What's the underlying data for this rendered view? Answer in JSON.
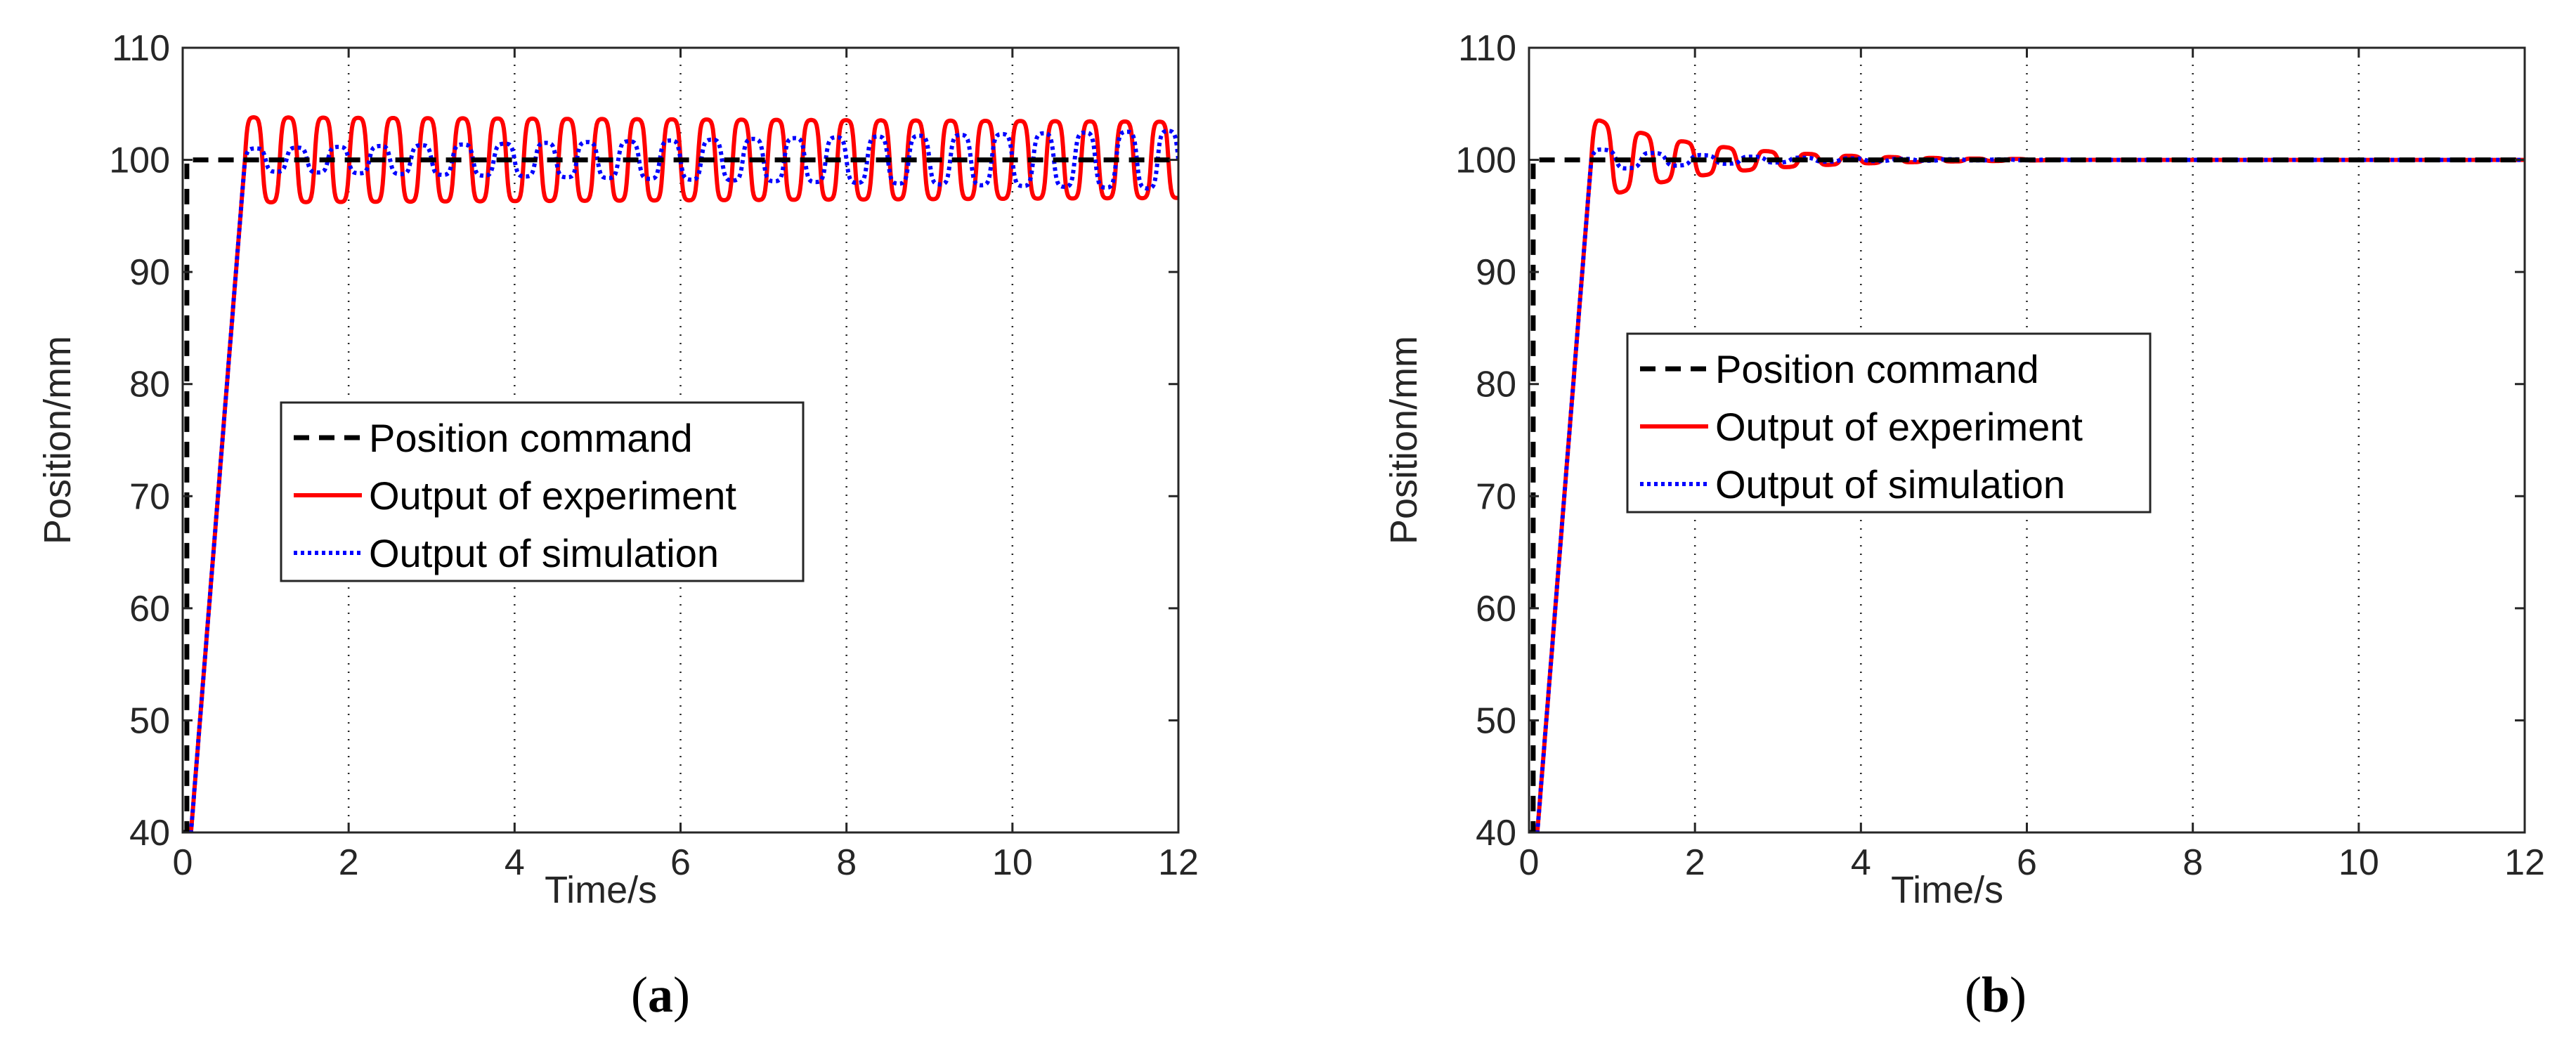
{
  "figure": {
    "legend_labels": {
      "command": "Position command",
      "experiment": "Output of experiment",
      "simulation": "Output of simulation"
    }
  },
  "chart_data": [
    {
      "type": "line",
      "panel": "a",
      "caption": {
        "open": "(",
        "letter": "a",
        "close": ")"
      },
      "xlabel": "Time/s",
      "ylabel": "Position/mm",
      "xlim": [
        0,
        12
      ],
      "ylim": [
        40,
        110
      ],
      "xticks": [
        0,
        2,
        4,
        6,
        8,
        10,
        12
      ],
      "yticks": [
        40,
        50,
        60,
        70,
        80,
        90,
        100,
        110
      ],
      "grid": "x-dotted",
      "legend_position": "center-left",
      "colors": {
        "command": "#000000",
        "experiment": "#ff0000",
        "simulation": "#0000ff"
      },
      "series": [
        {
          "name": "Position command",
          "style": "dashed",
          "x": [
            0,
            0.05,
            0.05,
            12
          ],
          "y": [
            40,
            40,
            100,
            100
          ]
        },
        {
          "name": "Output of experiment",
          "style": "solid",
          "model": {
            "start": 0.1,
            "rise_end": 0.75,
            "final": 100,
            "amplitude_start": 3.8,
            "amplitude_end": 3.4,
            "period": 0.42,
            "settle_time": null
          }
        },
        {
          "name": "Output of simulation",
          "style": "dotted",
          "model": {
            "start": 0.1,
            "rise_end": 0.75,
            "final": 100,
            "amplitude_start": 1.0,
            "amplitude_end": 2.6,
            "period": 0.5,
            "settle_time": null
          }
        }
      ]
    },
    {
      "type": "line",
      "panel": "b",
      "caption": {
        "open": "(",
        "letter": "b",
        "close": ")"
      },
      "xlabel": "Time/s",
      "ylabel": "Position/mm",
      "xlim": [
        0,
        12
      ],
      "ylim": [
        40,
        110
      ],
      "xticks": [
        0,
        2,
        4,
        6,
        8,
        10,
        12
      ],
      "yticks": [
        40,
        50,
        60,
        70,
        80,
        90,
        100,
        110
      ],
      "grid": "x-dotted",
      "legend_position": "top-left",
      "colors": {
        "command": "#000000",
        "experiment": "#ff0000",
        "simulation": "#0000ff"
      },
      "series": [
        {
          "name": "Position command",
          "style": "dashed",
          "x": [
            0,
            0.05,
            0.05,
            12
          ],
          "y": [
            40,
            40,
            100,
            100
          ]
        },
        {
          "name": "Output of experiment",
          "style": "solid",
          "model": {
            "start": 0.1,
            "rise_end": 0.75,
            "final": 100,
            "amplitude_start": 3.8,
            "decay": 0.75,
            "period": 0.5,
            "settle_time": 6
          }
        },
        {
          "name": "Output of simulation",
          "style": "dotted",
          "model": {
            "start": 0.1,
            "rise_end": 0.75,
            "final": 100,
            "amplitude_start": 1.0,
            "decay": 0.65,
            "period": 0.6,
            "settle_time": 6
          }
        }
      ]
    }
  ]
}
